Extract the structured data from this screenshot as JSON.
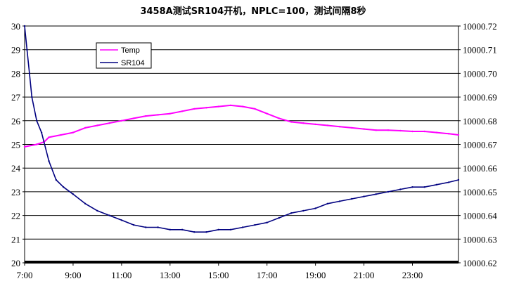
{
  "chart_data": {
    "type": "line",
    "title": "3458A测试SR104开机，NPLC=100，测试间隔8秒",
    "xlabel": "",
    "ylabel": "",
    "y2label": "",
    "x_ticks": [
      "7:00",
      "9:00",
      "11:00",
      "13:00",
      "15:00",
      "17:00",
      "19:00",
      "21:00",
      "23:00"
    ],
    "x_range_hours": [
      7,
      24.9
    ],
    "ylim_left": [
      20,
      30
    ],
    "y_left_ticks": [
      "20",
      "21",
      "22",
      "23",
      "24",
      "25",
      "26",
      "27",
      "28",
      "29",
      "30"
    ],
    "ylim_right": [
      10000.62,
      10000.72
    ],
    "y_right_ticks": [
      "10000.62",
      "10000.63",
      "10000.64",
      "10000.65",
      "10000.66",
      "10000.67",
      "10000.68",
      "10000.69",
      "10000.70",
      "10000.71",
      "10000.72"
    ],
    "grid": "horizontal",
    "legend_position": "top-left",
    "series": [
      {
        "name": "Temp",
        "axis": "left",
        "color": "#ff00ff",
        "x": [
          7.0,
          7.5,
          7.8,
          8.0,
          8.5,
          9.0,
          9.5,
          10.0,
          10.5,
          11.0,
          11.5,
          12.0,
          12.5,
          13.0,
          13.5,
          14.0,
          14.5,
          15.0,
          15.5,
          16.0,
          16.5,
          17.0,
          17.5,
          18.0,
          18.5,
          19.0,
          19.5,
          20.0,
          20.5,
          21.0,
          21.5,
          22.0,
          22.5,
          23.0,
          23.5,
          24.0,
          24.5,
          24.9
        ],
        "y": [
          24.9,
          25.0,
          25.1,
          25.3,
          25.4,
          25.5,
          25.7,
          25.8,
          25.9,
          26.0,
          26.1,
          26.2,
          26.25,
          26.3,
          26.4,
          26.5,
          26.55,
          26.6,
          26.65,
          26.6,
          26.5,
          26.3,
          26.1,
          25.95,
          25.9,
          25.85,
          25.8,
          25.75,
          25.7,
          25.65,
          25.6,
          25.6,
          25.58,
          25.55,
          25.55,
          25.5,
          25.45,
          25.4
        ]
      },
      {
        "name": "SR104",
        "axis": "right",
        "color": "#000080",
        "x": [
          7.0,
          7.1,
          7.2,
          7.3,
          7.5,
          7.7,
          8.0,
          8.3,
          8.6,
          9.0,
          9.5,
          10.0,
          10.5,
          11.0,
          11.5,
          12.0,
          12.5,
          13.0,
          13.5,
          14.0,
          14.5,
          15.0,
          15.5,
          16.0,
          16.5,
          17.0,
          17.5,
          18.0,
          18.5,
          19.0,
          19.5,
          20.0,
          20.5,
          21.0,
          21.5,
          22.0,
          22.5,
          23.0,
          23.5,
          24.0,
          24.5,
          24.9
        ],
        "y": [
          10000.72,
          10000.71,
          10000.7,
          10000.69,
          10000.68,
          10000.675,
          10000.663,
          10000.655,
          10000.652,
          10000.649,
          10000.645,
          10000.642,
          10000.64,
          10000.638,
          10000.636,
          10000.635,
          10000.635,
          10000.634,
          10000.634,
          10000.633,
          10000.633,
          10000.634,
          10000.634,
          10000.635,
          10000.636,
          10000.637,
          10000.639,
          10000.641,
          10000.642,
          10000.643,
          10000.645,
          10000.646,
          10000.647,
          10000.648,
          10000.649,
          10000.65,
          10000.651,
          10000.652,
          10000.652,
          10000.653,
          10000.654,
          10000.655
        ]
      }
    ]
  }
}
